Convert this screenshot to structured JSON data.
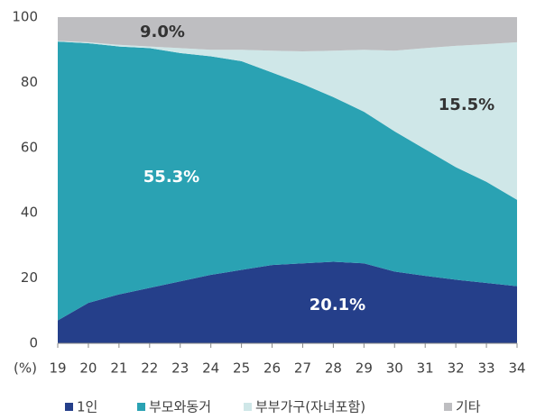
{
  "chart_data": {
    "type": "stacked_area",
    "x": [
      19,
      20,
      21,
      22,
      23,
      24,
      25,
      26,
      27,
      28,
      29,
      30,
      31,
      32,
      33,
      34
    ],
    "xlim": [
      19,
      34
    ],
    "xticks": [
      19,
      20,
      21,
      22,
      23,
      24,
      25,
      26,
      27,
      28,
      29,
      30,
      31,
      32,
      33,
      34
    ],
    "ylim": [
      0,
      100
    ],
    "yticks": [
      0,
      20,
      40,
      60,
      80,
      100
    ],
    "y_unit_label": "(%)",
    "grid": false,
    "legend": "bottom",
    "series": [
      {
        "name": "1인",
        "color": "#253f8a",
        "values": [
          7,
          12.4,
          15,
          17,
          19,
          21,
          22.5,
          24,
          24.5,
          25,
          24.5,
          22,
          20.7,
          19.5,
          18.5,
          17.5
        ]
      },
      {
        "name": "부모와동거",
        "color": "#2aa2b3",
        "values": [
          85.5,
          79.6,
          76,
          73.5,
          70,
          67,
          64,
          59,
          55,
          50.5,
          46.5,
          43,
          38.8,
          34.5,
          31,
          26.5
        ]
      },
      {
        "name": "부부가구(자녀포함)",
        "color": "#cfe7e8",
        "values": [
          0.2,
          0.3,
          0.5,
          0.5,
          1.5,
          2,
          3.5,
          6.7,
          10,
          14.2,
          19,
          24.7,
          31,
          37.2,
          42.2,
          48.3
        ]
      },
      {
        "name": "기타",
        "color": "#bebec1",
        "values": [
          7.3,
          7.7,
          8.5,
          9,
          9.5,
          10,
          10,
          10.3,
          10.5,
          10.3,
          10,
          10.3,
          9.5,
          8.8,
          8.3,
          7.7
        ]
      }
    ],
    "annotations": [
      "9.0%",
      "55.3%",
      "15.5%",
      "20.1%"
    ]
  }
}
